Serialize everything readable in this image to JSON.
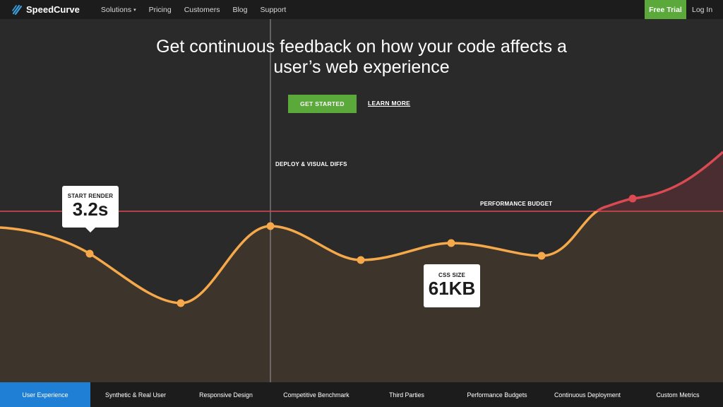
{
  "nav": {
    "brand": "SpeedCurve",
    "links": [
      {
        "label": "Solutions",
        "has_caret": true
      },
      {
        "label": "Pricing"
      },
      {
        "label": "Customers"
      },
      {
        "label": "Blog"
      },
      {
        "label": "Support"
      }
    ],
    "caret_glyph": "▾",
    "free_trial": "Free Trial",
    "login": "Log In"
  },
  "hero": {
    "headline_line1": "Get continuous feedback on how your code affects a",
    "headline_line2": "user’s web experience",
    "get_started": "GET STARTED",
    "learn_more": "LEARN MORE"
  },
  "annotations": {
    "deploy": "DEPLOY & VISUAL DIFFS",
    "budget": "PERFORMANCE BUDGET"
  },
  "callouts": {
    "start_render": {
      "label": "START RENDER",
      "value": "3.2s"
    },
    "css_size": {
      "label": "CSS SIZE",
      "value": "61KB"
    }
  },
  "colors": {
    "accent_green": "#5aa93a",
    "curve": "#f5a94a",
    "over_budget": "#d94a52",
    "tab_active": "#1f7fd4"
  },
  "tabs": [
    {
      "label": "User Experience",
      "active": true
    },
    {
      "label": "Synthetic & Real User"
    },
    {
      "label": "Responsive Design"
    },
    {
      "label": "Competitive Benchmark"
    },
    {
      "label": "Third Parties"
    },
    {
      "label": "Performance Budgets"
    },
    {
      "label": "Continuous Deployment"
    },
    {
      "label": "Custom Metrics"
    }
  ]
}
